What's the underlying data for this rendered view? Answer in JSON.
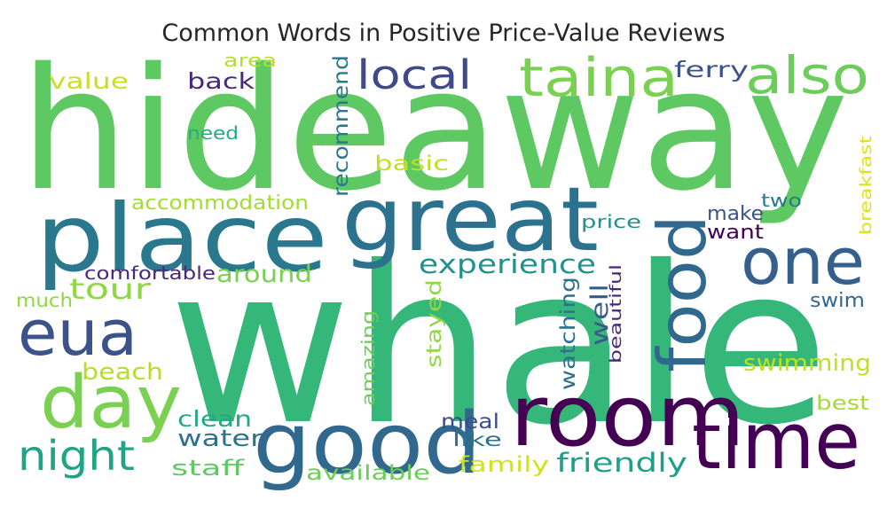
{
  "chart_data": {
    "type": "wordcloud",
    "title": "Common Words in Positive Price-Value Reviews",
    "colormap": "viridis",
    "words": [
      {
        "text": "hideaway",
        "weight": 1.0,
        "color": "#5ec962",
        "orientation": "horizontal"
      },
      {
        "text": "whale",
        "weight": 0.98,
        "color": "#35b779",
        "orientation": "horizontal"
      },
      {
        "text": "place",
        "weight": 0.58,
        "color": "#2a788e",
        "orientation": "horizontal"
      },
      {
        "text": "great",
        "weight": 0.56,
        "color": "#2c728e",
        "orientation": "horizontal"
      },
      {
        "text": "room",
        "weight": 0.52,
        "color": "#440154",
        "orientation": "horizontal"
      },
      {
        "text": "good",
        "weight": 0.5,
        "color": "#31688e",
        "orientation": "horizontal"
      },
      {
        "text": "time",
        "weight": 0.48,
        "color": "#440154",
        "orientation": "horizontal"
      },
      {
        "text": "day",
        "weight": 0.44,
        "color": "#7ad151",
        "orientation": "horizontal"
      },
      {
        "text": "food",
        "weight": 0.4,
        "color": "#31688e",
        "orientation": "vertical"
      },
      {
        "text": "one",
        "weight": 0.39,
        "color": "#355f8d",
        "orientation": "horizontal"
      },
      {
        "text": "eua",
        "weight": 0.37,
        "color": "#3b528b",
        "orientation": "horizontal"
      },
      {
        "text": "taina",
        "weight": 0.32,
        "color": "#7ad151",
        "orientation": "horizontal"
      },
      {
        "text": "also",
        "weight": 0.31,
        "color": "#6ccd5a",
        "orientation": "horizontal"
      },
      {
        "text": "night",
        "weight": 0.25,
        "color": "#20a486",
        "orientation": "horizontal"
      },
      {
        "text": "local",
        "weight": 0.24,
        "color": "#3e4a89",
        "orientation": "horizontal"
      },
      {
        "text": "tour",
        "weight": 0.18,
        "color": "#8fd744",
        "orientation": "horizontal"
      },
      {
        "text": "experience",
        "weight": 0.15,
        "color": "#21918c",
        "orientation": "horizontal"
      },
      {
        "text": "friendly",
        "weight": 0.15,
        "color": "#1f9e89",
        "orientation": "horizontal"
      },
      {
        "text": "around",
        "weight": 0.14,
        "color": "#7ad151",
        "orientation": "horizontal"
      },
      {
        "text": "swimming",
        "weight": 0.13,
        "color": "#c2df23",
        "orientation": "horizontal"
      },
      {
        "text": "water",
        "weight": 0.13,
        "color": "#2c728e",
        "orientation": "horizontal"
      },
      {
        "text": "beach",
        "weight": 0.13,
        "color": "#b5de2b",
        "orientation": "horizontal"
      },
      {
        "text": "clean",
        "weight": 0.13,
        "color": "#22a884",
        "orientation": "horizontal"
      },
      {
        "text": "staff",
        "weight": 0.12,
        "color": "#5ec962",
        "orientation": "horizontal"
      },
      {
        "text": "family",
        "weight": 0.12,
        "color": "#d2e21b",
        "orientation": "horizontal"
      },
      {
        "text": "available",
        "weight": 0.11,
        "color": "#6ccd5a",
        "orientation": "horizontal"
      },
      {
        "text": "accommodation",
        "weight": 0.11,
        "color": "#a5db36",
        "orientation": "horizontal"
      },
      {
        "text": "well",
        "weight": 0.12,
        "color": "#365c8d",
        "orientation": "vertical"
      },
      {
        "text": "stayed",
        "weight": 0.12,
        "color": "#8fd744",
        "orientation": "vertical"
      },
      {
        "text": "recommend",
        "weight": 0.11,
        "color": "#2a788e",
        "orientation": "vertical"
      },
      {
        "text": "watching",
        "weight": 0.11,
        "color": "#2c728e",
        "orientation": "vertical"
      },
      {
        "text": "amazing",
        "weight": 0.1,
        "color": "#6ccd5a",
        "orientation": "vertical"
      },
      {
        "text": "beautiful",
        "weight": 0.09,
        "color": "#482878",
        "orientation": "vertical"
      },
      {
        "text": "ferry",
        "weight": 0.12,
        "color": "#3b528b",
        "orientation": "horizontal"
      },
      {
        "text": "value",
        "weight": 0.12,
        "color": "#c8e020",
        "orientation": "horizontal"
      },
      {
        "text": "back",
        "weight": 0.12,
        "color": "#482878",
        "orientation": "horizontal"
      },
      {
        "text": "basic",
        "weight": 0.11,
        "color": "#c2df23",
        "orientation": "horizontal"
      },
      {
        "text": "meal",
        "weight": 0.11,
        "color": "#3e4a89",
        "orientation": "horizontal"
      },
      {
        "text": "like",
        "weight": 0.1,
        "color": "#2c728e",
        "orientation": "horizontal"
      },
      {
        "text": "make",
        "weight": 0.1,
        "color": "#3b528b",
        "orientation": "horizontal"
      },
      {
        "text": "want",
        "weight": 0.1,
        "color": "#440154",
        "orientation": "horizontal"
      },
      {
        "text": "two",
        "weight": 0.1,
        "color": "#2a788e",
        "orientation": "horizontal"
      },
      {
        "text": "swim",
        "weight": 0.1,
        "color": "#31688e",
        "orientation": "horizontal"
      },
      {
        "text": "best",
        "weight": 0.1,
        "color": "#a5db36",
        "orientation": "horizontal"
      },
      {
        "text": "much",
        "weight": 0.1,
        "color": "#8fd744",
        "orientation": "horizontal"
      },
      {
        "text": "comfortable",
        "weight": 0.09,
        "color": "#482878",
        "orientation": "horizontal"
      },
      {
        "text": "price",
        "weight": 0.09,
        "color": "#21918c",
        "orientation": "horizontal"
      },
      {
        "text": "need",
        "weight": 0.09,
        "color": "#25ab82",
        "orientation": "horizontal"
      },
      {
        "text": "area",
        "weight": 0.09,
        "color": "#b5de2b",
        "orientation": "horizontal"
      },
      {
        "text": "breakfast",
        "weight": 0.08,
        "color": "#dde318",
        "orientation": "vertical"
      }
    ]
  }
}
